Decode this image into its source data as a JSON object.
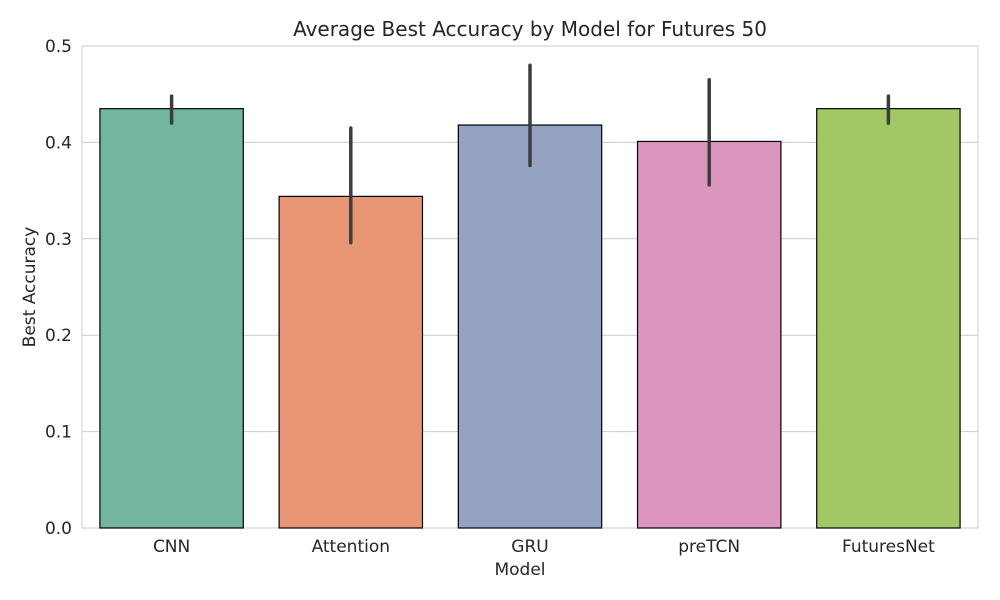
{
  "chart_data": {
    "type": "bar",
    "title": "Average Best Accuracy by Model for Futures 50",
    "xlabel": "Model",
    "ylabel": "Best Accuracy",
    "categories": [
      "CNN",
      "Attention",
      "GRU",
      "preTCN",
      "FuturesNet"
    ],
    "values": [
      0.435,
      0.344,
      0.418,
      0.401,
      0.435
    ],
    "error_low": [
      0.42,
      0.296,
      0.376,
      0.356,
      0.42
    ],
    "error_high": [
      0.448,
      0.415,
      0.48,
      0.465,
      0.448
    ],
    "colors": [
      "#72b6a1",
      "#e99675",
      "#95a3c3",
      "#db96c0",
      "#a1c865"
    ],
    "ylim": [
      0,
      0.5
    ],
    "yticks": [
      "0.0",
      "0.1",
      "0.2",
      "0.3",
      "0.4",
      "0.5"
    ],
    "ytick_values": [
      0,
      0.1,
      0.2,
      0.3,
      0.4,
      0.5
    ],
    "grid": true,
    "legend": "none"
  }
}
